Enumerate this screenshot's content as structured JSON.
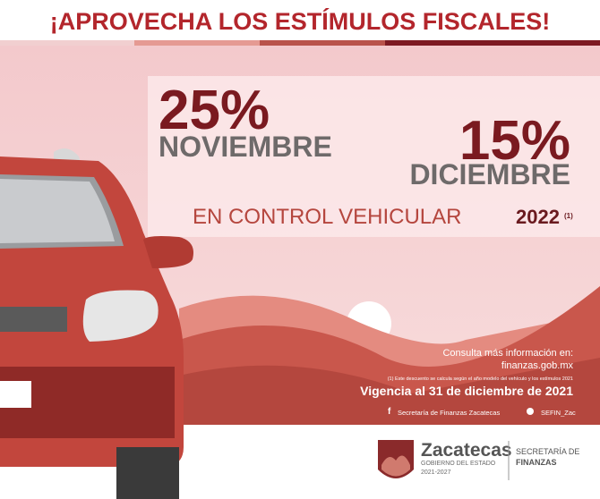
{
  "header": {
    "title": "¡APROVECHA LOS ESTÍMULOS FISCALES!"
  },
  "offer": {
    "first": {
      "percent": "25%",
      "month": "NOVIEMBRE"
    },
    "second": {
      "percent": "15%",
      "month": "DICIEMBRE"
    },
    "subject": "EN CONTROL VEHICULAR",
    "year": "2022",
    "note_ref": "(1)"
  },
  "info": {
    "consult": "Consulta más información en:",
    "site": "finanzas.gob.mx",
    "footnote": "(1) Este descuento se calcula según el año modelo del vehículo y los estímulos 2021",
    "validity": "Vigencia al 31 de diciembre de 2021",
    "facebook": "Secretaría de Finanzas Zacatecas",
    "twitter": "SEFIN_Zac"
  },
  "logo": {
    "state": "Zacatecas",
    "government": "GOBIERNO DEL ESTADO",
    "period": "2021-2027",
    "secretariat_line1": "SECRETARÍA DE",
    "secretariat_line2": "FINANZAS"
  }
}
